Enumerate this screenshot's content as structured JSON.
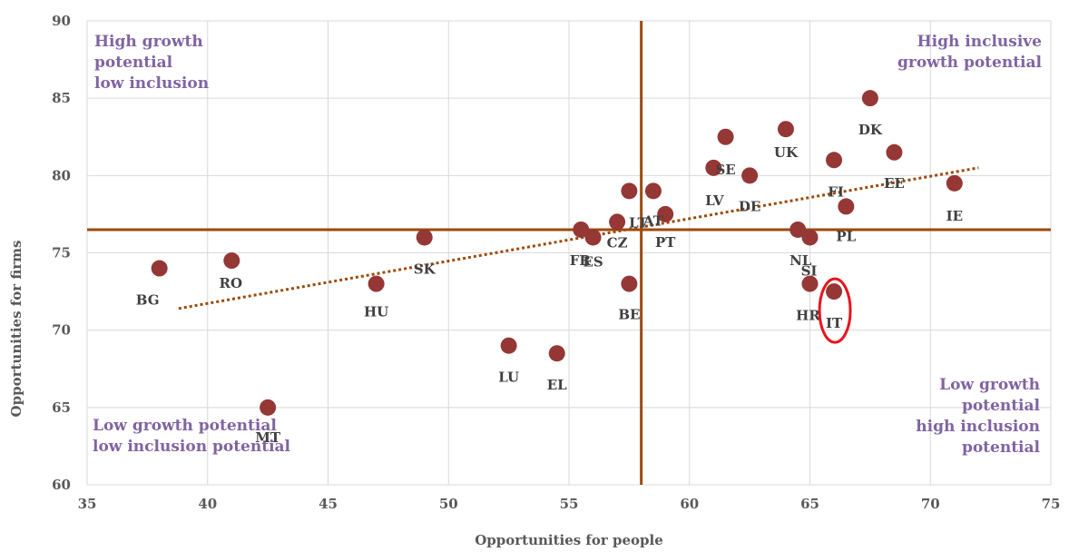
{
  "chart_data": {
    "type": "scatter",
    "xlabel": "Opportunities for people",
    "ylabel": "Opportunities for firms",
    "xlim": [
      35,
      75
    ],
    "ylim": [
      60,
      90
    ],
    "xticks": [
      35,
      40,
      45,
      50,
      55,
      60,
      65,
      70,
      75
    ],
    "yticks": [
      60,
      65,
      70,
      75,
      80,
      85,
      90
    ],
    "grid": true,
    "marker_color": "#953735",
    "reference_lines": {
      "x": 58,
      "y": 76.5,
      "color": "#9c4a0a"
    },
    "trendline": {
      "type": "linear",
      "style": "dotted",
      "color": "#9c4a0a",
      "from": [
        38.8,
        71.4
      ],
      "to": [
        72,
        80.5
      ]
    },
    "highlight": {
      "label": "IT",
      "color": "#e8141c"
    },
    "points": [
      {
        "label": "BG",
        "x": 38,
        "y": 74
      },
      {
        "label": "RO",
        "x": 41,
        "y": 74.5
      },
      {
        "label": "MT",
        "x": 42.5,
        "y": 65
      },
      {
        "label": "HU",
        "x": 47,
        "y": 73
      },
      {
        "label": "SK",
        "x": 49,
        "y": 76
      },
      {
        "label": "LU",
        "x": 52.5,
        "y": 69
      },
      {
        "label": "EL",
        "x": 54.5,
        "y": 68.5
      },
      {
        "label": "FR",
        "x": 55.5,
        "y": 76.5
      },
      {
        "label": "ES",
        "x": 56,
        "y": 76
      },
      {
        "label": "CZ",
        "x": 57,
        "y": 77
      },
      {
        "label": "LT",
        "x": 57.5,
        "y": 79
      },
      {
        "label": "BE",
        "x": 57.5,
        "y": 73
      },
      {
        "label": "AT",
        "x": 58.5,
        "y": 79
      },
      {
        "label": "PT",
        "x": 59,
        "y": 77.5
      },
      {
        "label": "LV",
        "x": 61,
        "y": 80.5
      },
      {
        "label": "SE",
        "x": 61.5,
        "y": 82.5
      },
      {
        "label": "DE",
        "x": 62.5,
        "y": 80
      },
      {
        "label": "UK",
        "x": 64,
        "y": 83
      },
      {
        "label": "NL",
        "x": 64.5,
        "y": 76.5
      },
      {
        "label": "SI",
        "x": 65,
        "y": 76
      },
      {
        "label": "HR",
        "x": 65,
        "y": 73
      },
      {
        "label": "IT",
        "x": 66,
        "y": 72.5
      },
      {
        "label": "FI",
        "x": 66,
        "y": 81
      },
      {
        "label": "PL",
        "x": 66.5,
        "y": 78
      },
      {
        "label": "DK",
        "x": 67.5,
        "y": 85
      },
      {
        "label": "EE",
        "x": 68.5,
        "y": 81.5
      },
      {
        "label": "IE",
        "x": 71,
        "y": 79.5
      }
    ],
    "annotations": [
      {
        "lines": [
          "High growth",
          "potential",
          "low inclusion"
        ],
        "position": "top-left"
      },
      {
        "lines": [
          "High inclusive",
          "growth potential"
        ],
        "position": "top-right"
      },
      {
        "lines": [
          "Low growth potential",
          "low inclusion potential"
        ],
        "position": "bottom-left"
      },
      {
        "lines": [
          "Low growth",
          "potential",
          "high inclusion",
          "potential"
        ],
        "position": "bottom-right"
      }
    ]
  }
}
